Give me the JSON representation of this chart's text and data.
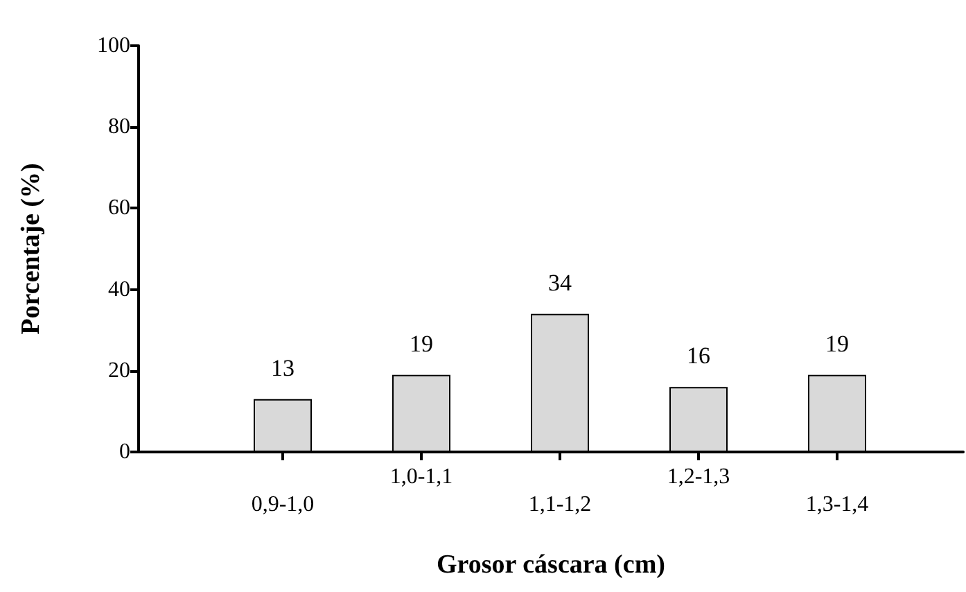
{
  "chart_data": {
    "type": "bar",
    "xlabel": "Grosor cáscara (cm)",
    "ylabel": "Porcentaje (%)",
    "categories": [
      "0,9-1,0",
      "1,0-1,1",
      "1,1-1,2",
      "1,2-1,3",
      "1,3-1,4"
    ],
    "values": [
      13,
      19,
      34,
      16,
      19
    ],
    "color": "#d9d9d9",
    "ylim": [
      0,
      100
    ],
    "yticks": [
      0,
      20,
      40,
      60,
      80,
      100
    ],
    "grid": false,
    "data_labels": true
  }
}
